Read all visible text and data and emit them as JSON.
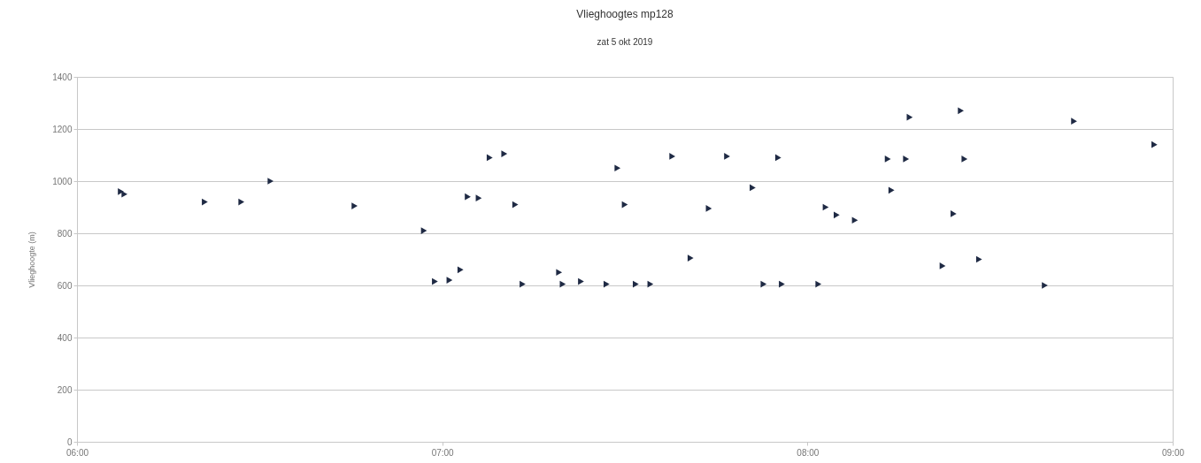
{
  "chart_data": {
    "type": "scatter",
    "title": "Vlieghoogtes mp128",
    "subtitle": "zat 5 okt 2019",
    "ylabel": "Vlieghoogte (m)",
    "x": [
      6.12,
      6.13,
      6.35,
      6.45,
      6.53,
      6.76,
      6.95,
      6.98,
      7.02,
      7.05,
      7.07,
      7.1,
      7.13,
      7.17,
      7.2,
      7.22,
      7.32,
      7.33,
      7.38,
      7.45,
      7.48,
      7.5,
      7.53,
      7.57,
      7.63,
      7.68,
      7.73,
      7.78,
      7.85,
      7.88,
      7.92,
      7.93,
      8.03,
      8.05,
      8.08,
      8.13,
      8.22,
      8.23,
      8.27,
      8.28,
      8.37,
      8.4,
      8.42,
      8.43,
      8.47,
      8.65,
      8.73,
      8.95
    ],
    "series": [
      {
        "color": "#1f2a44",
        "values": [
          960,
          950,
          920,
          920,
          1000,
          905,
          810,
          615,
          620,
          660,
          940,
          935,
          1090,
          1105,
          910,
          605,
          650,
          605,
          615,
          605,
          1050,
          910,
          605,
          605,
          1095,
          705,
          895,
          1095,
          975,
          605,
          1090,
          605,
          605,
          900,
          870,
          850,
          1085,
          965,
          1085,
          1245,
          675,
          875,
          1270,
          1085,
          700,
          600,
          1230,
          1140
        ]
      }
    ],
    "xlim": [
      6,
      9
    ],
    "xticks": [
      {
        "value": 6,
        "label": "06:00"
      },
      {
        "value": 7,
        "label": "07:00"
      },
      {
        "value": 8,
        "label": "08:00"
      },
      {
        "value": 9,
        "label": "09:00"
      }
    ],
    "ylim": [
      0,
      1400
    ],
    "yticks": [
      0,
      200,
      400,
      600,
      800,
      1000,
      1200,
      1400
    ],
    "grid": "y",
    "marker": "triangle"
  }
}
